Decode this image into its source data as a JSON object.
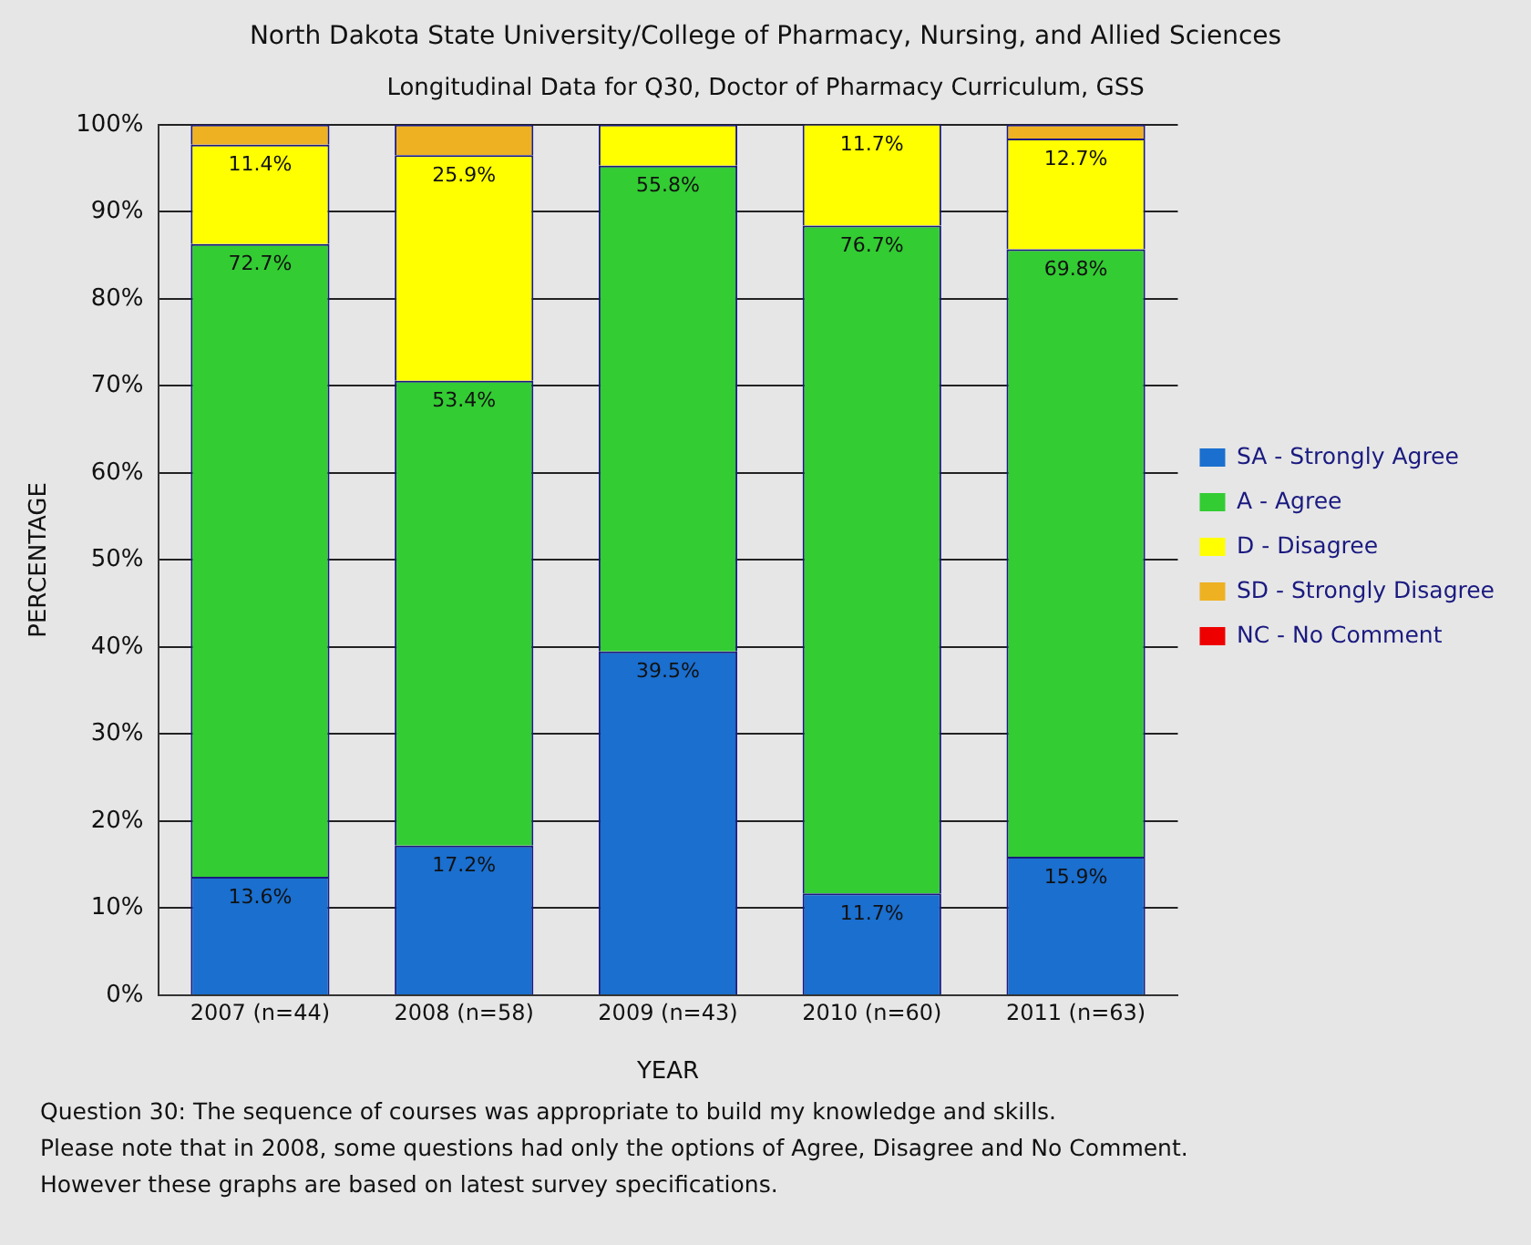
{
  "chart_data": {
    "type": "bar",
    "title": "North Dakota State University/College of Pharmacy, Nursing, and Allied Sciences",
    "subtitle": "Longitudinal Data for Q30, Doctor of Pharmacy Curriculum, GSS",
    "xlabel": "YEAR",
    "ylabel": "PERCENTAGE",
    "categories": [
      "2007 (n=44)",
      "2008 (n=58)",
      "2009 (n=43)",
      "2010 (n=60)",
      "2011 (n=63)"
    ],
    "stacked": true,
    "ylim": [
      0,
      100
    ],
    "yticks": [
      {
        "value": 0,
        "label": "0%"
      },
      {
        "value": 10,
        "label": "10%"
      },
      {
        "value": 20,
        "label": "20%"
      },
      {
        "value": 30,
        "label": "30%"
      },
      {
        "value": 40,
        "label": "40%"
      },
      {
        "value": 50,
        "label": "50%"
      },
      {
        "value": 60,
        "label": "60%"
      },
      {
        "value": 70,
        "label": "70%"
      },
      {
        "value": 80,
        "label": "80%"
      },
      {
        "value": 90,
        "label": "90%"
      },
      {
        "value": 100,
        "label": "100%"
      }
    ],
    "grid": "y",
    "legend": "right",
    "series": [
      {
        "name": "SA - Strongly Agree",
        "color": "#1a6fcf",
        "values": [
          13.6,
          17.2,
          39.5,
          11.7,
          15.9
        ],
        "value_labels": [
          "13.6%",
          "17.2%",
          "39.5%",
          "11.7%",
          "15.9%"
        ]
      },
      {
        "name": "A - Agree",
        "color": "#33cc33",
        "values": [
          72.7,
          53.4,
          55.8,
          76.7,
          69.8
        ],
        "value_labels": [
          "72.7%",
          "53.4%",
          "55.8%",
          "76.7%",
          "69.8%"
        ]
      },
      {
        "name": "D - Disagree",
        "color": "#ffff00",
        "values": [
          11.4,
          25.9,
          4.7,
          11.7,
          12.7
        ],
        "value_labels": [
          "11.4%",
          "25.9%",
          null,
          "11.7%",
          "12.7%"
        ]
      },
      {
        "name": "SD - Strongly Disagree",
        "color": "#eeb122",
        "values": [
          2.3,
          3.5,
          0,
          0,
          1.6
        ]
      },
      {
        "name": "NC - No Comment",
        "color": "#ee0000",
        "values": [
          0,
          0,
          0,
          0,
          0
        ]
      }
    ],
    "annotations": [
      "Question 30: The sequence of courses was appropriate to build my knowledge and skills.",
      "Please note that in 2008, some questions had only the options of Agree, Disagree and No Comment.",
      "However these graphs are based on latest survey specifications."
    ]
  }
}
